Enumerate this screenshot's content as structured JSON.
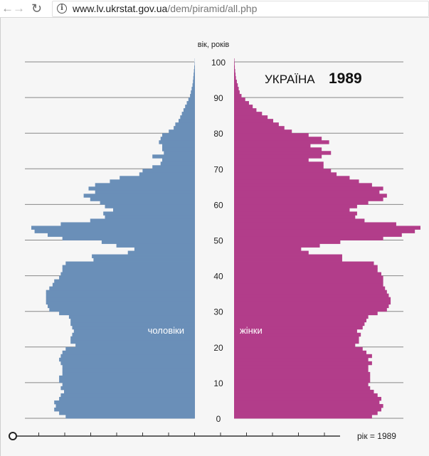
{
  "browser": {
    "back_icon": "arrow-left-icon",
    "forward_icon": "arrow-right-icon",
    "reload_icon": "reload-icon",
    "info_icon": "info-icon",
    "url_host": "www.lv.ukrstat.gov.ua",
    "url_path": "/dem/piramid/all.php"
  },
  "colors": {
    "male": "#6a8fb8",
    "female": "#b23d8a",
    "grid": "#888888",
    "background": "#f6f6f6"
  },
  "slider": {
    "label": "рік = 1989",
    "value": 1989
  },
  "chart_data": {
    "type": "bar",
    "title": "УКРАЇНА",
    "year": "1989",
    "ylabel": "вік, років",
    "y_ticks": [
      "0",
      "10",
      "20",
      "30",
      "40",
      "50",
      "60",
      "70",
      "80",
      "90",
      "100"
    ],
    "series": [
      {
        "name": "чоловіки",
        "values": [
          0.79,
          0.83,
          0.86,
          0.85,
          0.86,
          0.83,
          0.82,
          0.8,
          0.82,
          0.81,
          0.83,
          0.83,
          0.81,
          0.81,
          0.81,
          0.82,
          0.83,
          0.82,
          0.81,
          0.79,
          0.73,
          0.76,
          0.76,
          0.75,
          0.74,
          0.75,
          0.76,
          0.76,
          0.77,
          0.83,
          0.89,
          0.9,
          0.91,
          0.91,
          0.91,
          0.91,
          0.89,
          0.87,
          0.86,
          0.83,
          0.82,
          0.81,
          0.81,
          0.79,
          0.62,
          0.63,
          0.41,
          0.37,
          0.48,
          0.57,
          0.81,
          0.9,
          0.98,
          1.0,
          0.82,
          0.64,
          0.55,
          0.56,
          0.5,
          0.55,
          0.58,
          0.64,
          0.68,
          0.61,
          0.65,
          0.61,
          0.52,
          0.46,
          0.34,
          0.32,
          0.26,
          0.21,
          0.2,
          0.26,
          0.19,
          0.2,
          0.2,
          0.22,
          0.21,
          0.2,
          0.16,
          0.13,
          0.12,
          0.1,
          0.09,
          0.08,
          0.07,
          0.06,
          0.05,
          0.04,
          0.03,
          0.025,
          0.02,
          0.015,
          0.012,
          0.01,
          0.008,
          0.006,
          0.004,
          0.002,
          0.001
        ]
      },
      {
        "name": "жінки",
        "values": [
          0.74,
          0.77,
          0.79,
          0.8,
          0.78,
          0.79,
          0.77,
          0.75,
          0.73,
          0.72,
          0.73,
          0.73,
          0.73,
          0.72,
          0.72,
          0.74,
          0.72,
          0.74,
          0.71,
          0.69,
          0.65,
          0.67,
          0.67,
          0.68,
          0.66,
          0.69,
          0.7,
          0.71,
          0.72,
          0.77,
          0.82,
          0.83,
          0.84,
          0.84,
          0.83,
          0.82,
          0.81,
          0.8,
          0.8,
          0.8,
          0.79,
          0.77,
          0.77,
          0.75,
          0.58,
          0.58,
          0.4,
          0.36,
          0.46,
          0.57,
          0.8,
          0.9,
          0.97,
          1.0,
          0.87,
          0.7,
          0.65,
          0.66,
          0.62,
          0.66,
          0.72,
          0.8,
          0.82,
          0.78,
          0.8,
          0.74,
          0.67,
          0.62,
          0.55,
          0.52,
          0.48,
          0.48,
          0.4,
          0.47,
          0.52,
          0.47,
          0.41,
          0.51,
          0.47,
          0.4,
          0.31,
          0.27,
          0.24,
          0.21,
          0.18,
          0.15,
          0.12,
          0.1,
          0.08,
          0.06,
          0.04,
          0.03,
          0.025,
          0.02,
          0.015,
          0.01,
          0.008,
          0.006,
          0.004,
          0.003,
          0.002
        ]
      }
    ],
    "male_label": "чоловіки",
    "female_label": "жінки",
    "grid": true
  }
}
